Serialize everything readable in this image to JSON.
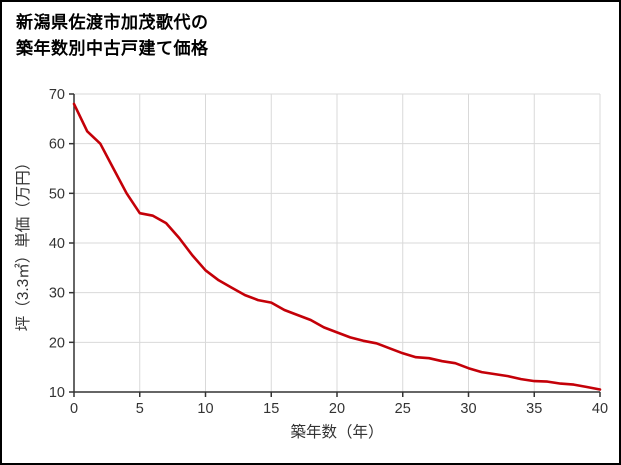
{
  "header": {
    "title_line1": "新潟県佐渡市加茂歌代の",
    "title_line2": "築年数別中古戸建て価格"
  },
  "chart_data": {
    "type": "line",
    "title": "新潟県佐渡市加茂歌代の築年数別中古戸建て価格",
    "xlabel": "築年数（年）",
    "ylabel": "坪（3.3㎡）単価（万円）",
    "xlim": [
      0,
      40
    ],
    "ylim": [
      10,
      70
    ],
    "xticks": [
      0,
      5,
      10,
      15,
      20,
      25,
      30,
      35,
      40
    ],
    "yticks": [
      10,
      20,
      30,
      40,
      50,
      60,
      70
    ],
    "grid": true,
    "legend": "none",
    "line_color": "#c40008",
    "grid_color": "#d9d9d9",
    "axis_color": "#333333",
    "text_color": "#333333",
    "x": [
      0,
      1,
      2,
      3,
      4,
      5,
      6,
      7,
      8,
      9,
      10,
      11,
      12,
      13,
      14,
      15,
      16,
      17,
      18,
      19,
      20,
      21,
      22,
      23,
      24,
      25,
      26,
      27,
      28,
      29,
      30,
      31,
      32,
      33,
      34,
      35,
      36,
      37,
      38,
      39,
      40
    ],
    "y": [
      68,
      62.5,
      60,
      55,
      50,
      46,
      45.5,
      44,
      41,
      37.5,
      34.5,
      32.5,
      31,
      29.5,
      28.5,
      28,
      26.5,
      25.5,
      24.5,
      23,
      22,
      21,
      20.3,
      19.8,
      18.8,
      17.8,
      17,
      16.8,
      16.2,
      15.8,
      14.8,
      14,
      13.6,
      13.2,
      12.6,
      12.2,
      12.1,
      11.7,
      11.5,
      11,
      10.5
    ]
  }
}
